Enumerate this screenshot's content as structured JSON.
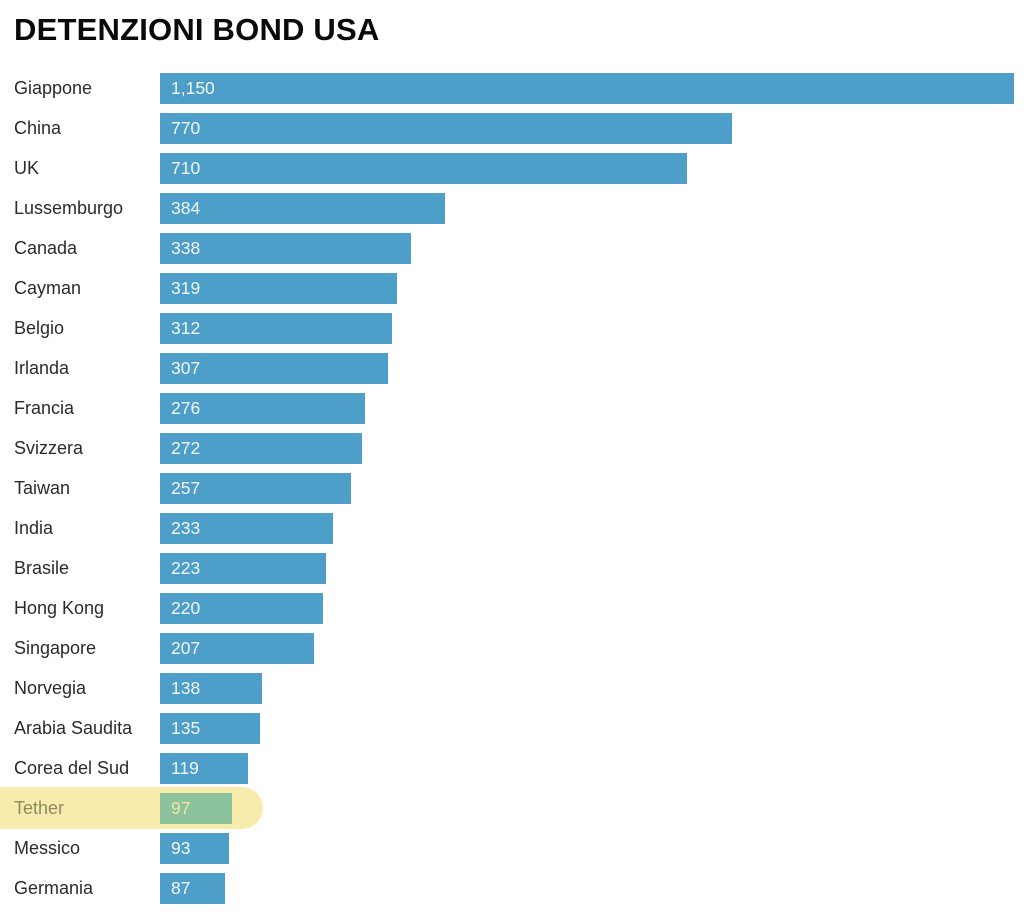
{
  "title": "DETENZIONI BOND USA",
  "colors": {
    "bar": "#4d9fc9",
    "value_text": "#f2f6f8",
    "label_text": "#2b2b2b",
    "title_text": "#0a0a0a",
    "background": "#ffffff",
    "highlight_band": "#f7ecac",
    "highlight_bar": "#8cc29b",
    "highlight_label_text": "#8f8a61",
    "highlight_value_text": "#f0e5a8"
  },
  "chart_data": {
    "type": "bar",
    "orientation": "horizontal",
    "title": "DETENZIONI BOND USA",
    "xlabel": "",
    "ylabel": "",
    "xlim": [
      0,
      1150
    ],
    "grid": false,
    "legend": false,
    "categories": [
      "Giappone",
      "China",
      "UK",
      "Lussemburgo",
      "Canada",
      "Cayman",
      "Belgio",
      "Irlanda",
      "Francia",
      "Svizzera",
      "Taiwan",
      "India",
      "Brasile",
      "Hong Kong",
      "Singapore",
      "Norvegia",
      "Arabia Saudita",
      "Corea del Sud",
      "Tether",
      "Messico",
      "Germania"
    ],
    "values": [
      1150,
      770,
      710,
      384,
      338,
      319,
      312,
      307,
      276,
      272,
      257,
      233,
      223,
      220,
      207,
      138,
      135,
      119,
      97,
      93,
      87
    ],
    "value_labels": [
      "1,150",
      "770",
      "710",
      "384",
      "338",
      "319",
      "312",
      "307",
      "276",
      "272",
      "257",
      "233",
      "223",
      "220",
      "207",
      "138",
      "135",
      "119",
      "97",
      "93",
      "87"
    ],
    "highlighted_category": "Tether"
  }
}
